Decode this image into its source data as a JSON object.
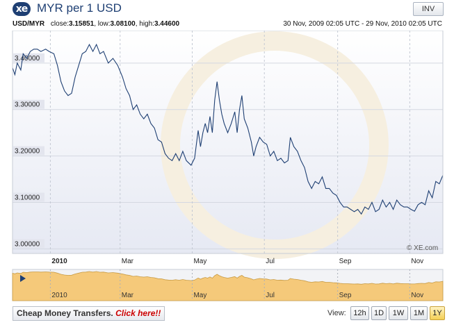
{
  "header": {
    "logo_text": "xe",
    "title": "MYR per 1 USD",
    "inv_label": "INV"
  },
  "stats": {
    "pair": "USD/MYR",
    "close_label": "close:",
    "close_value": "3.15851",
    "low_label": "low:",
    "low_value": "3.08100",
    "high_label": "high:",
    "high_value": "3.44600",
    "date_range": "30 Nov, 2009 02:05 UTC - 29 Nov, 2010 02:05 UTC"
  },
  "watermark": "© XE.com",
  "bottom": {
    "promo_text": "Cheap Money Transfers.",
    "promo_link": "Click here!!",
    "view_label": "View:",
    "views": [
      {
        "label": "12h",
        "active": false
      },
      {
        "label": "1D",
        "active": false
      },
      {
        "label": "1W",
        "active": false
      },
      {
        "label": "1M",
        "active": false
      },
      {
        "label": "1Y",
        "active": true
      }
    ]
  },
  "colors": {
    "line": "#1e3f73",
    "plot_top": "#ffffff",
    "plot_bottom": "#e6e9f3",
    "y_label_bg": "#e3e5ee",
    "navigator_fill": "#f5c97a",
    "navigator_stroke": "#c79b45"
  },
  "chart_data": {
    "type": "line",
    "x_start": "2009-11-30",
    "x_end": "2010-11-29",
    "ylim": [
      2.99,
      3.47
    ],
    "y_ticks": [
      3.0,
      3.1,
      3.2,
      3.3,
      3.4
    ],
    "y_tick_labels": [
      "3.00000",
      "3.10000",
      "3.20000",
      "3.30000",
      "3.40000"
    ],
    "x_ticks": [
      {
        "date": "2010-01-01",
        "label": "2010",
        "bold": true
      },
      {
        "date": "2010-03-01",
        "label": "Mar",
        "bold": false
      },
      {
        "date": "2010-05-01",
        "label": "May",
        "bold": false
      },
      {
        "date": "2010-07-01",
        "label": "Jul",
        "bold": false
      },
      {
        "date": "2010-09-01",
        "label": "Sep",
        "bold": false
      },
      {
        "date": "2010-11-01",
        "label": "Nov",
        "bold": false
      }
    ],
    "grid": true,
    "series": [
      {
        "points": [
          [
            "2009-11-30",
            3.39
          ],
          [
            "2009-12-02",
            3.375
          ],
          [
            "2009-12-04",
            3.4
          ],
          [
            "2009-12-07",
            3.385
          ],
          [
            "2009-12-09",
            3.42
          ],
          [
            "2009-12-12",
            3.41
          ],
          [
            "2009-12-15",
            3.425
          ],
          [
            "2009-12-18",
            3.43
          ],
          [
            "2009-12-21",
            3.43
          ],
          [
            "2009-12-24",
            3.425
          ],
          [
            "2009-12-28",
            3.43
          ],
          [
            "2009-12-31",
            3.425
          ],
          [
            "2010-01-04",
            3.42
          ],
          [
            "2010-01-07",
            3.395
          ],
          [
            "2010-01-10",
            3.36
          ],
          [
            "2010-01-13",
            3.34
          ],
          [
            "2010-01-16",
            3.33
          ],
          [
            "2010-01-19",
            3.335
          ],
          [
            "2010-01-22",
            3.37
          ],
          [
            "2010-01-25",
            3.395
          ],
          [
            "2010-01-28",
            3.42
          ],
          [
            "2010-01-31",
            3.425
          ],
          [
            "2010-02-03",
            3.44
          ],
          [
            "2010-02-06",
            3.425
          ],
          [
            "2010-02-09",
            3.44
          ],
          [
            "2010-02-12",
            3.42
          ],
          [
            "2010-02-15",
            3.425
          ],
          [
            "2010-02-19",
            3.4
          ],
          [
            "2010-02-23",
            3.41
          ],
          [
            "2010-02-27",
            3.395
          ],
          [
            "2010-03-03",
            3.37
          ],
          [
            "2010-03-06",
            3.345
          ],
          [
            "2010-03-09",
            3.33
          ],
          [
            "2010-03-12",
            3.3
          ],
          [
            "2010-03-15",
            3.31
          ],
          [
            "2010-03-18",
            3.29
          ],
          [
            "2010-03-21",
            3.28
          ],
          [
            "2010-03-24",
            3.29
          ],
          [
            "2010-03-27",
            3.27
          ],
          [
            "2010-03-30",
            3.26
          ],
          [
            "2010-04-02",
            3.235
          ],
          [
            "2010-04-05",
            3.23
          ],
          [
            "2010-04-08",
            3.205
          ],
          [
            "2010-04-11",
            3.195
          ],
          [
            "2010-04-14",
            3.19
          ],
          [
            "2010-04-17",
            3.205
          ],
          [
            "2010-04-20",
            3.19
          ],
          [
            "2010-04-23",
            3.21
          ],
          [
            "2010-04-26",
            3.19
          ],
          [
            "2010-04-30",
            3.18
          ],
          [
            "2010-05-03",
            3.195
          ],
          [
            "2010-05-06",
            3.255
          ],
          [
            "2010-05-08",
            3.22
          ],
          [
            "2010-05-10",
            3.25
          ],
          [
            "2010-05-12",
            3.27
          ],
          [
            "2010-05-14",
            3.25
          ],
          [
            "2010-05-16",
            3.285
          ],
          [
            "2010-05-18",
            3.25
          ],
          [
            "2010-05-20",
            3.32
          ],
          [
            "2010-05-22",
            3.36
          ],
          [
            "2010-05-24",
            3.32
          ],
          [
            "2010-05-26",
            3.29
          ],
          [
            "2010-05-28",
            3.27
          ],
          [
            "2010-05-31",
            3.25
          ],
          [
            "2010-06-03",
            3.27
          ],
          [
            "2010-06-06",
            3.295
          ],
          [
            "2010-06-08",
            3.25
          ],
          [
            "2010-06-10",
            3.3
          ],
          [
            "2010-06-12",
            3.33
          ],
          [
            "2010-06-14",
            3.28
          ],
          [
            "2010-06-17",
            3.26
          ],
          [
            "2010-06-20",
            3.23
          ],
          [
            "2010-06-22",
            3.2
          ],
          [
            "2010-06-24",
            3.22
          ],
          [
            "2010-06-27",
            3.24
          ],
          [
            "2010-06-30",
            3.23
          ],
          [
            "2010-07-03",
            3.225
          ],
          [
            "2010-07-06",
            3.2
          ],
          [
            "2010-07-09",
            3.21
          ],
          [
            "2010-07-12",
            3.19
          ],
          [
            "2010-07-15",
            3.195
          ],
          [
            "2010-07-18",
            3.185
          ],
          [
            "2010-07-21",
            3.19
          ],
          [
            "2010-07-23",
            3.24
          ],
          [
            "2010-07-26",
            3.22
          ],
          [
            "2010-07-29",
            3.21
          ],
          [
            "2010-08-01",
            3.19
          ],
          [
            "2010-08-04",
            3.175
          ],
          [
            "2010-08-07",
            3.145
          ],
          [
            "2010-08-10",
            3.13
          ],
          [
            "2010-08-13",
            3.145
          ],
          [
            "2010-08-16",
            3.14
          ],
          [
            "2010-08-19",
            3.155
          ],
          [
            "2010-08-22",
            3.13
          ],
          [
            "2010-08-25",
            3.13
          ],
          [
            "2010-08-28",
            3.12
          ],
          [
            "2010-08-31",
            3.115
          ],
          [
            "2010-09-03",
            3.1
          ],
          [
            "2010-09-06",
            3.09
          ],
          [
            "2010-09-09",
            3.09
          ],
          [
            "2010-09-12",
            3.085
          ],
          [
            "2010-09-15",
            3.08
          ],
          [
            "2010-09-18",
            3.085
          ],
          [
            "2010-09-21",
            3.075
          ],
          [
            "2010-09-24",
            3.09
          ],
          [
            "2010-09-27",
            3.085
          ],
          [
            "2010-09-30",
            3.1
          ],
          [
            "2010-10-03",
            3.08
          ],
          [
            "2010-10-06",
            3.085
          ],
          [
            "2010-10-09",
            3.105
          ],
          [
            "2010-10-12",
            3.09
          ],
          [
            "2010-10-15",
            3.1
          ],
          [
            "2010-10-18",
            3.085
          ],
          [
            "2010-10-21",
            3.105
          ],
          [
            "2010-10-24",
            3.095
          ],
          [
            "2010-10-27",
            3.09
          ],
          [
            "2010-10-30",
            3.09
          ],
          [
            "2010-11-02",
            3.085
          ],
          [
            "2010-11-05",
            3.081
          ],
          [
            "2010-11-08",
            3.095
          ],
          [
            "2010-11-11",
            3.1
          ],
          [
            "2010-11-14",
            3.095
          ],
          [
            "2010-11-17",
            3.125
          ],
          [
            "2010-11-20",
            3.11
          ],
          [
            "2010-11-23",
            3.145
          ],
          [
            "2010-11-26",
            3.14
          ],
          [
            "2010-11-29",
            3.15851
          ]
        ]
      }
    ]
  }
}
